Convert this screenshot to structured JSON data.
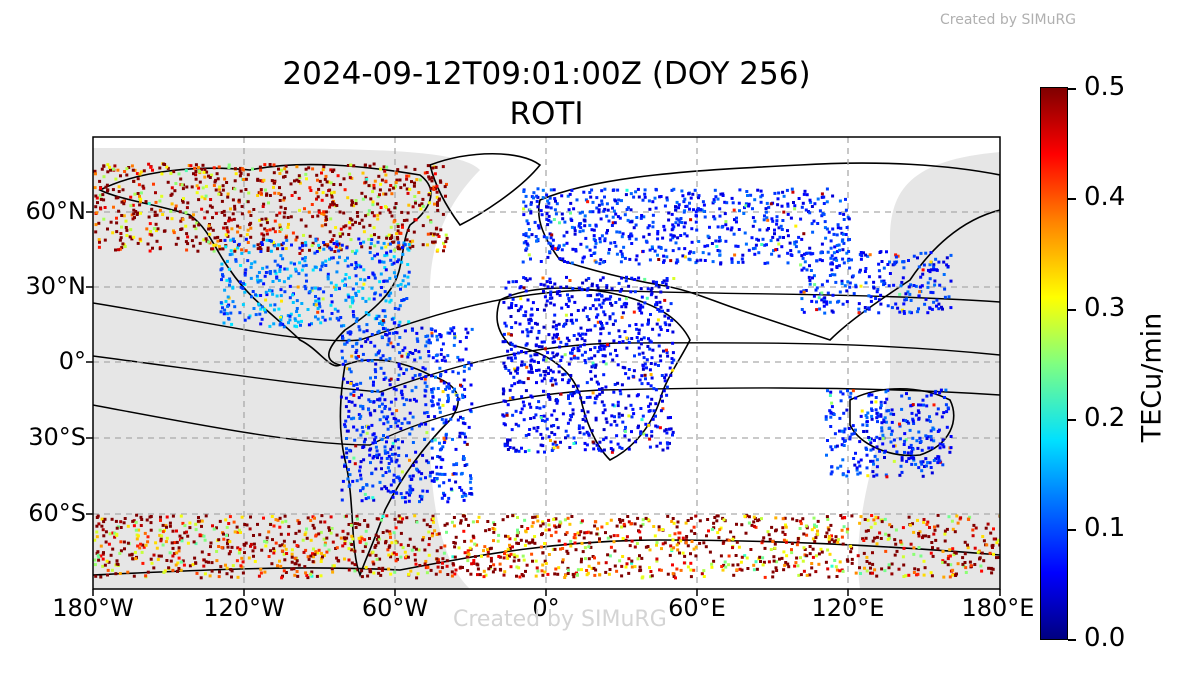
{
  "credit_top": "Created by SIMuRG",
  "credit_bottom": "Created by SIMuRG",
  "title": "2024-09-12T09:01:00Z (DOY 256)",
  "subtitle": "ROTI",
  "axes": {
    "lon_ticks": [
      "180°W",
      "120°W",
      "60°W",
      "0°",
      "60°E",
      "120°E",
      "180°E"
    ],
    "lat_ticks": [
      "60°N",
      "30°N",
      "0°",
      "30°S",
      "60°S"
    ],
    "lon_range": [
      -180,
      180
    ],
    "lat_range": [
      -90,
      90
    ],
    "grid": true
  },
  "colorbar": {
    "label": "TECu/min",
    "ticks": [
      "0.5",
      "0.4",
      "0.3",
      "0.2",
      "0.1",
      "0.0"
    ],
    "min": 0.0,
    "max": 0.5,
    "colormap": "jet"
  },
  "colors": {
    "night_shade": "#e6e6e6",
    "grid": "#aaaaaa",
    "coastline": "#000000",
    "lakes": "#9bb3d6"
  },
  "chart_data": {
    "type": "scatter",
    "title": "2024-09-12T09:01:00Z (DOY 256)",
    "subtitle": "ROTI",
    "x_label": "",
    "y_label": "",
    "value_label": "TECu/min",
    "x_range": [
      -180,
      180
    ],
    "y_range": [
      -90,
      90
    ],
    "regions": [
      {
        "name": "north-america-high-lat",
        "lon": [
          -180,
          -40
        ],
        "lat": [
          45,
          80
        ],
        "roti": 0.5
      },
      {
        "name": "north-america",
        "lon": [
          -130,
          -55
        ],
        "lat": [
          15,
          50
        ],
        "roti": 0.12
      },
      {
        "name": "south-america",
        "lon": [
          -82,
          -30
        ],
        "lat": [
          -55,
          15
        ],
        "roti": 0.08
      },
      {
        "name": "europe-asia",
        "lon": [
          -10,
          120
        ],
        "lat": [
          40,
          70
        ],
        "roti": 0.08
      },
      {
        "name": "africa",
        "lon": [
          -18,
          50
        ],
        "lat": [
          -35,
          35
        ],
        "roti": 0.06
      },
      {
        "name": "east-asia",
        "lon": [
          100,
          160
        ],
        "lat": [
          20,
          45
        ],
        "roti": 0.08
      },
      {
        "name": "australia",
        "lon": [
          110,
          160
        ],
        "lat": [
          -45,
          -10
        ],
        "roti": 0.08
      },
      {
        "name": "antarctic-ring",
        "lon": [
          -180,
          180
        ],
        "lat": [
          -85,
          -60
        ],
        "roti": 0.48
      }
    ]
  }
}
